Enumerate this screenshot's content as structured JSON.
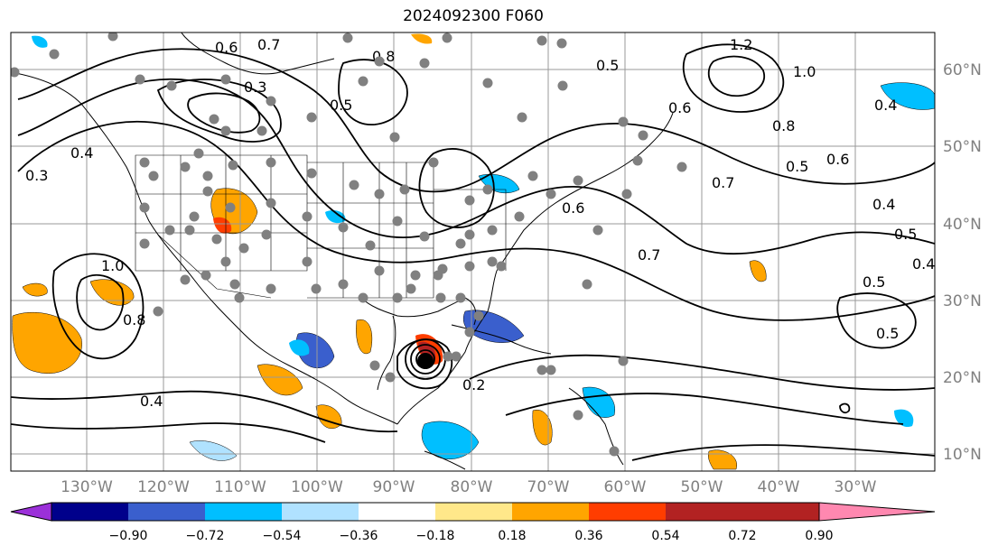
{
  "title": "2024092300 F060",
  "lon_labels": [
    "130°W",
    "120°W",
    "110°W",
    "100°W",
    "90°W",
    "80°W",
    "70°W",
    "60°W",
    "50°W",
    "40°W",
    "30°W"
  ],
  "lat_labels": [
    "60°N",
    "50°N",
    "40°N",
    "30°N",
    "20°N",
    "10°N"
  ],
  "colorbar": {
    "ticks": [
      "−0.90",
      "−0.72",
      "−0.54",
      "−0.36",
      "−0.18",
      "0.18",
      "0.36",
      "0.54",
      "0.72",
      "0.90"
    ],
    "colors": [
      "#9b30d9",
      "#00008b",
      "#3a5fcd",
      "#00bfff",
      "#b0e2ff",
      "#ffffff",
      "#ffe88a",
      "#ffa500",
      "#ff3d00",
      "#b22222",
      "#ff88b0"
    ]
  },
  "contour_labels": [
    "0.6",
    "0.7",
    "0.3",
    "0.5",
    "0.8",
    "0.5",
    "0.6",
    "1.2",
    "1.0",
    "0.4",
    "0.4",
    "0.3",
    "0.8",
    "0.5",
    "0.6",
    "0.7",
    "0.6",
    "0.4",
    "0.5",
    "0.5",
    "0.4",
    "0.7",
    "0.2",
    "0.4",
    "0.5",
    "1.0",
    "0.8"
  ],
  "colors": {
    "grid": "#999999",
    "axis_label": "#808080",
    "contour": "#000000",
    "station": "#808080"
  }
}
